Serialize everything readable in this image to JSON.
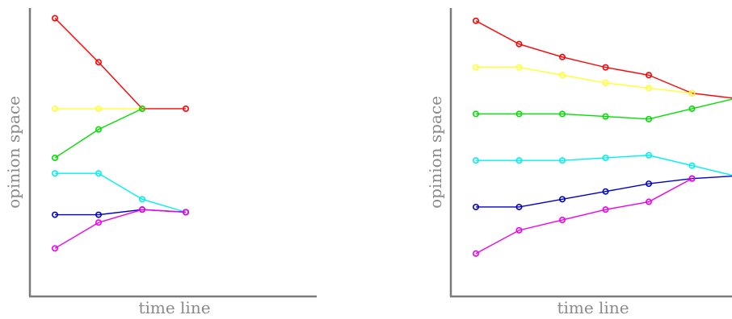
{
  "chart_data": [
    {
      "type": "line",
      "xlabel": "time line",
      "ylabel": "opinion space",
      "grid": false,
      "x": [
        0,
        1,
        2,
        3
      ],
      "ylim": [
        0,
        100
      ],
      "series": [
        {
          "color": "#ff0000",
          "values": [
            97,
            80,
            62,
            62
          ]
        },
        {
          "color": "#ffff33",
          "values": [
            62,
            62,
            62,
            null
          ]
        },
        {
          "color": "#00e000",
          "values": [
            43,
            54,
            62,
            null
          ]
        },
        {
          "color": "#00f0f0",
          "values": [
            37,
            37,
            27,
            22
          ]
        },
        {
          "color": "#0000cc",
          "values": [
            21,
            21,
            23,
            22
          ]
        },
        {
          "color": "#ee00ee",
          "values": [
            8,
            18,
            23,
            22
          ]
        }
      ]
    },
    {
      "type": "line",
      "xlabel": "time line",
      "ylabel": "opinion space",
      "grid": false,
      "x": [
        0,
        1,
        2,
        3,
        4,
        5,
        6
      ],
      "ylim": [
        0,
        100
      ],
      "series": [
        {
          "color": "#ff0000",
          "values": [
            96,
            87,
            82,
            78,
            75,
            68,
            66
          ]
        },
        {
          "color": "#ffff33",
          "values": [
            78,
            78,
            75,
            72,
            70,
            68,
            null
          ]
        },
        {
          "color": "#00e000",
          "values": [
            60,
            60,
            60,
            59,
            58,
            62,
            66
          ]
        },
        {
          "color": "#00f0f0",
          "values": [
            42,
            42,
            42,
            43,
            44,
            40,
            36
          ]
        },
        {
          "color": "#0000cc",
          "values": [
            24,
            24,
            27,
            30,
            33,
            35,
            36
          ]
        },
        {
          "color": "#ee00ee",
          "values": [
            6,
            15,
            19,
            23,
            26,
            35,
            null
          ]
        }
      ]
    }
  ]
}
